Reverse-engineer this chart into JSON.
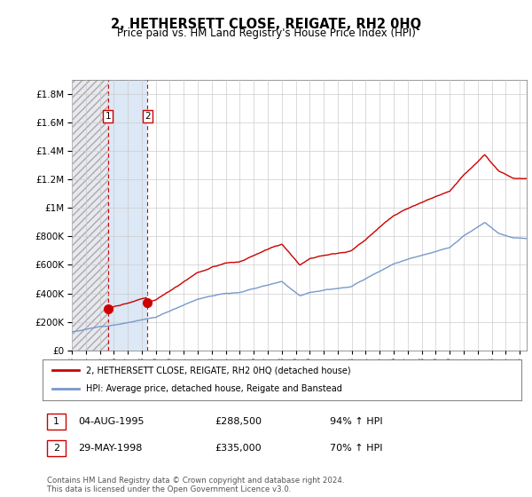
{
  "title": "2, HETHERSETT CLOSE, REIGATE, RH2 0HQ",
  "subtitle": "Price paid vs. HM Land Registry's House Price Index (HPI)",
  "legend_line1": "2, HETHERSETT CLOSE, REIGATE, RH2 0HQ (detached house)",
  "legend_line2": "HPI: Average price, detached house, Reigate and Banstead",
  "transaction1_date": "04-AUG-1995",
  "transaction1_price": "£288,500",
  "transaction1_hpi": "94% ↑ HPI",
  "transaction2_date": "29-MAY-1998",
  "transaction2_price": "£335,000",
  "transaction2_hpi": "70% ↑ HPI",
  "footer": "Contains HM Land Registry data © Crown copyright and database right 2024.\nThis data is licensed under the Open Government Licence v3.0.",
  "sale_color": "#cc0000",
  "hpi_color": "#7799cc",
  "dashed_line_color": "#cc0000",
  "ylim": [
    0,
    1900000
  ],
  "yticks": [
    0,
    200000,
    400000,
    600000,
    800000,
    1000000,
    1200000,
    1400000,
    1600000,
    1800000
  ],
  "xlim_start": 1993.0,
  "xlim_end": 2025.5,
  "sale1_x": 1995.58,
  "sale1_y": 288500,
  "sale2_x": 1998.41,
  "sale2_y": 335000
}
